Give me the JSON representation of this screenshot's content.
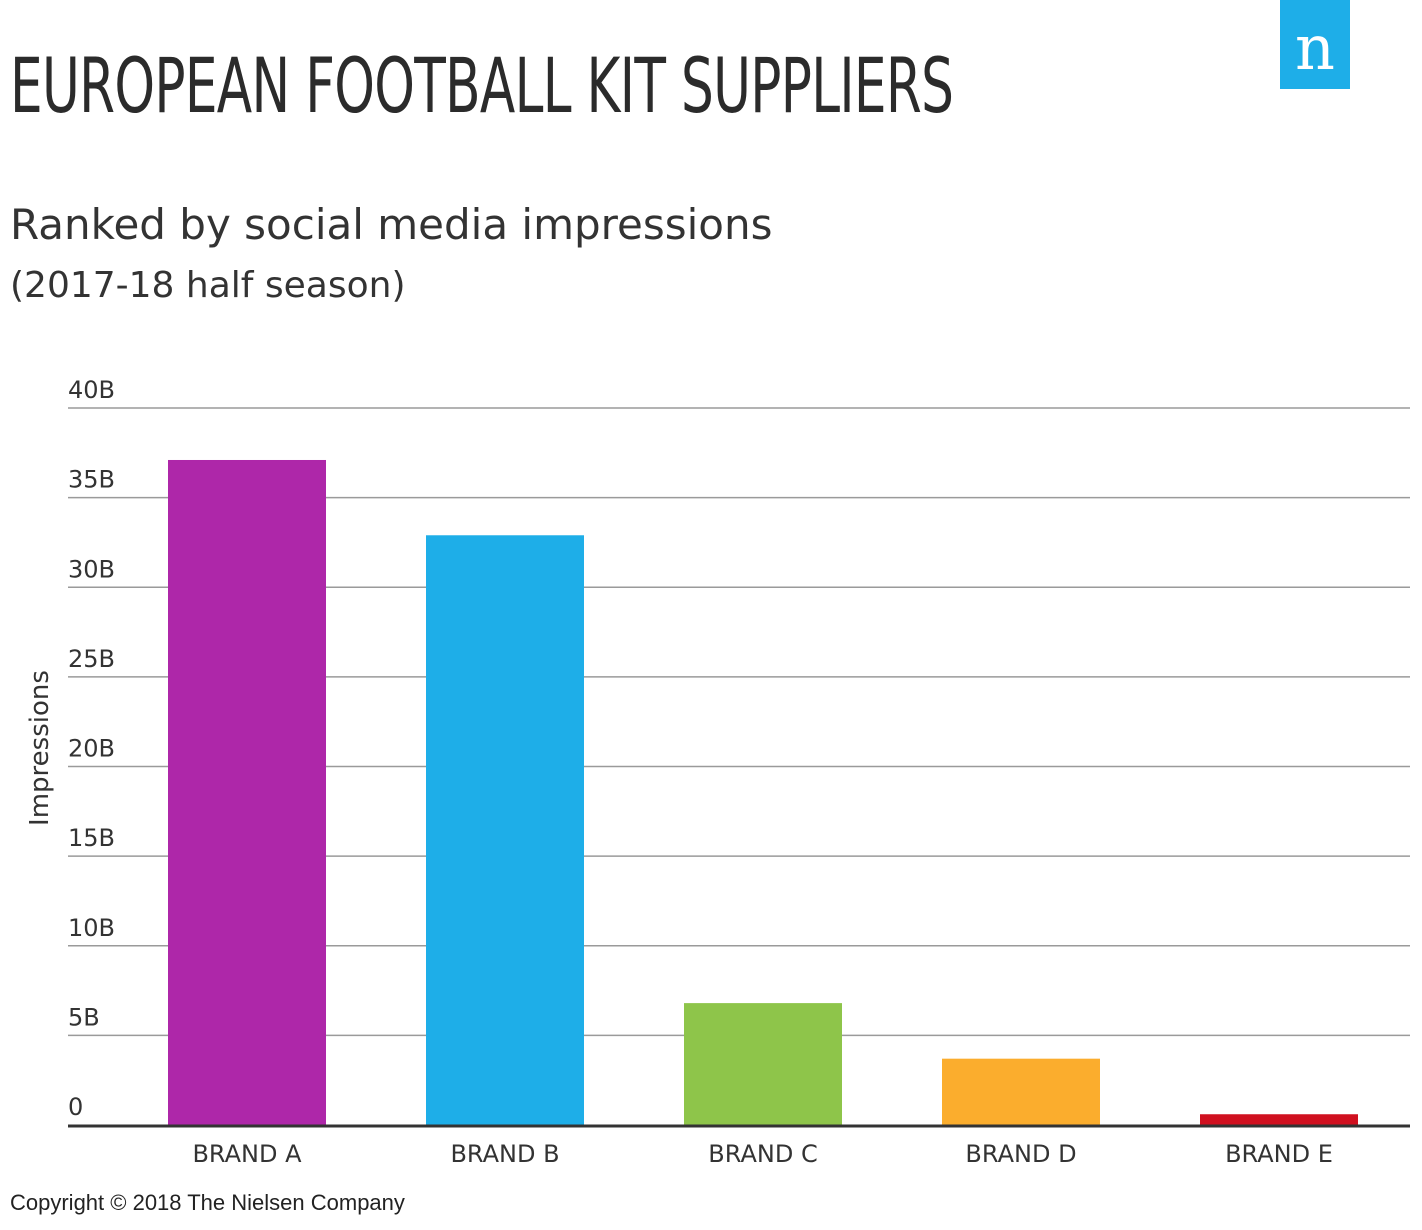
{
  "header": {
    "title": "EUROPEAN FOOTBALL KIT SUPPLIERS",
    "subtitle": "Ranked by social media impressions",
    "subtitle2": "(2017-18 half season)",
    "logo_letter": "n",
    "logo_color": "#1eaee8"
  },
  "footer": {
    "copyright": "Copyright © 2018 The Nielsen Company"
  },
  "chart_data": {
    "type": "bar",
    "title": "EUROPEAN FOOTBALL KIT SUPPLIERS",
    "subtitle": "Ranked by social media impressions (2017-18 half season)",
    "xlabel": "",
    "ylabel": "Impressions",
    "ylim": [
      0,
      40
    ],
    "yticks": [
      0,
      5,
      10,
      15,
      20,
      25,
      30,
      35,
      40
    ],
    "ytick_labels": [
      "0",
      "5B",
      "10B",
      "15B",
      "20B",
      "25B",
      "30B",
      "35B",
      "40B"
    ],
    "categories": [
      "BRAND A",
      "BRAND B",
      "BRAND C",
      "BRAND D",
      "BRAND E"
    ],
    "values": [
      37.1,
      32.9,
      6.8,
      3.7,
      0.6
    ],
    "unit": "B",
    "colors": [
      "#ae27a9",
      "#1eaee8",
      "#8ec54a",
      "#fbad2d",
      "#d0101f"
    ],
    "grid": true,
    "legend": "none"
  }
}
